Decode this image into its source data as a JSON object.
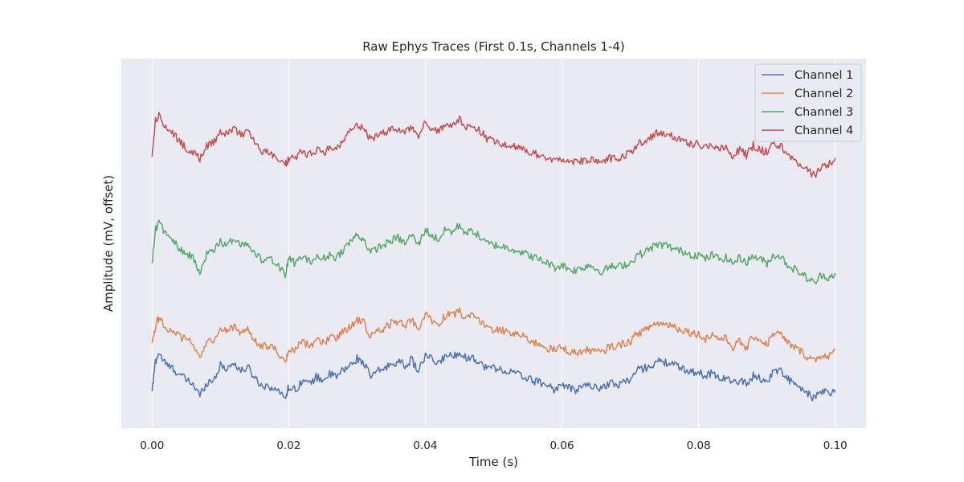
{
  "chart_data": {
    "type": "line",
    "title": "Raw Ephys Traces (First 0.1s, Channels 1-4)",
    "xlabel": "Time (s)",
    "ylabel": "Amplitude (mV, offset)",
    "xlim": [
      -0.0045,
      0.1045
    ],
    "xticks": [
      0.0,
      0.02,
      0.04,
      0.06,
      0.08,
      0.1
    ],
    "xtick_labels": [
      "0.00",
      "0.02",
      "0.04",
      "0.06",
      "0.08",
      "0.10"
    ],
    "ylim": [
      -2.8,
      10.2
    ],
    "yticks_shown": false,
    "grid": true,
    "legend_position": "top-right",
    "colors": {
      "background": "#eaeaf2",
      "grid": "#ffffff"
    },
    "series": [
      {
        "name": "Channel 1",
        "color": "#4c72b0",
        "offset": 0,
        "x": [
          0.0,
          0.0005,
          0.001,
          0.002,
          0.003,
          0.004,
          0.005,
          0.006,
          0.007,
          0.008,
          0.009,
          0.01,
          0.011,
          0.012,
          0.013,
          0.014,
          0.015,
          0.016,
          0.017,
          0.018,
          0.0195,
          0.02,
          0.021,
          0.022,
          0.023,
          0.024,
          0.025,
          0.026,
          0.027,
          0.028,
          0.029,
          0.03,
          0.031,
          0.032,
          0.033,
          0.034,
          0.035,
          0.036,
          0.037,
          0.038,
          0.039,
          0.04,
          0.041,
          0.042,
          0.043,
          0.044,
          0.045,
          0.046,
          0.047,
          0.048,
          0.049,
          0.05,
          0.051,
          0.052,
          0.053,
          0.054,
          0.055,
          0.056,
          0.057,
          0.058,
          0.059,
          0.06,
          0.061,
          0.062,
          0.063,
          0.064,
          0.065,
          0.066,
          0.067,
          0.068,
          0.069,
          0.07,
          0.071,
          0.072,
          0.073,
          0.074,
          0.075,
          0.076,
          0.077,
          0.078,
          0.079,
          0.08,
          0.081,
          0.082,
          0.083,
          0.084,
          0.085,
          0.086,
          0.087,
          0.088,
          0.089,
          0.09,
          0.091,
          0.092,
          0.093,
          0.094,
          0.095,
          0.096,
          0.097,
          0.098,
          0.099,
          0.1
        ],
        "y": [
          -1.5,
          -0.45,
          -0.15,
          -0.55,
          -0.7,
          -0.9,
          -1.1,
          -1.25,
          -1.65,
          -1.2,
          -1.1,
          -0.6,
          -0.7,
          -0.5,
          -0.8,
          -0.65,
          -1.0,
          -1.3,
          -1.3,
          -1.45,
          -1.7,
          -1.35,
          -1.45,
          -1.1,
          -1.25,
          -1.0,
          -1.1,
          -0.9,
          -1.0,
          -0.75,
          -0.6,
          -0.35,
          -0.5,
          -1.0,
          -0.8,
          -0.7,
          -0.55,
          -0.45,
          -0.6,
          -0.4,
          -0.8,
          -0.25,
          -0.4,
          -0.55,
          -0.2,
          -0.3,
          -0.1,
          -0.35,
          -0.3,
          -0.5,
          -0.7,
          -0.65,
          -0.75,
          -0.8,
          -0.85,
          -0.95,
          -1.05,
          -1.15,
          -1.2,
          -1.3,
          -1.45,
          -1.25,
          -1.4,
          -1.45,
          -1.35,
          -1.25,
          -1.4,
          -1.35,
          -1.2,
          -1.3,
          -1.15,
          -1.1,
          -0.75,
          -0.7,
          -0.6,
          -0.45,
          -0.5,
          -0.5,
          -0.65,
          -0.75,
          -0.8,
          -0.85,
          -0.95,
          -0.85,
          -1.05,
          -1.0,
          -1.25,
          -1.1,
          -1.25,
          -0.95,
          -1.05,
          -1.2,
          -0.75,
          -0.8,
          -1.05,
          -1.25,
          -1.45,
          -1.6,
          -1.75,
          -1.5,
          -1.6,
          -1.45
        ]
      },
      {
        "name": "Channel 2",
        "color": "#dd8452",
        "offset": 1.5,
        "x": [
          0.0,
          0.0005,
          0.001,
          0.002,
          0.003,
          0.004,
          0.005,
          0.006,
          0.007,
          0.008,
          0.009,
          0.01,
          0.011,
          0.012,
          0.013,
          0.014,
          0.015,
          0.016,
          0.017,
          0.018,
          0.0195,
          0.02,
          0.021,
          0.022,
          0.023,
          0.024,
          0.025,
          0.026,
          0.027,
          0.028,
          0.029,
          0.03,
          0.031,
          0.032,
          0.033,
          0.034,
          0.035,
          0.036,
          0.037,
          0.038,
          0.039,
          0.04,
          0.041,
          0.042,
          0.043,
          0.044,
          0.045,
          0.046,
          0.047,
          0.048,
          0.049,
          0.05,
          0.051,
          0.052,
          0.053,
          0.054,
          0.055,
          0.056,
          0.057,
          0.058,
          0.059,
          0.06,
          0.061,
          0.062,
          0.063,
          0.064,
          0.065,
          0.066,
          0.067,
          0.068,
          0.069,
          0.07,
          0.071,
          0.072,
          0.073,
          0.074,
          0.075,
          0.076,
          0.077,
          0.078,
          0.079,
          0.08,
          0.081,
          0.082,
          0.083,
          0.084,
          0.085,
          0.086,
          0.087,
          0.088,
          0.089,
          0.09,
          0.091,
          0.092,
          0.093,
          0.094,
          0.095,
          0.096,
          0.097,
          0.098,
          0.099,
          0.1
        ],
        "y": [
          -1.3,
          -0.7,
          -0.4,
          -0.75,
          -0.9,
          -1.05,
          -1.2,
          -1.3,
          -1.75,
          -1.3,
          -1.2,
          -0.8,
          -0.9,
          -0.7,
          -0.95,
          -0.85,
          -1.2,
          -1.45,
          -1.4,
          -1.55,
          -1.9,
          -1.55,
          -1.55,
          -1.25,
          -1.4,
          -1.25,
          -1.3,
          -1.1,
          -1.15,
          -0.9,
          -0.7,
          -0.5,
          -0.6,
          -1.1,
          -0.9,
          -0.8,
          -0.6,
          -0.55,
          -0.7,
          -0.45,
          -0.85,
          -0.3,
          -0.5,
          -0.7,
          -0.3,
          -0.35,
          -0.2,
          -0.45,
          -0.35,
          -0.55,
          -0.75,
          -0.8,
          -0.85,
          -0.9,
          -0.95,
          -1.05,
          -1.15,
          -1.3,
          -1.35,
          -1.5,
          -1.55,
          -1.45,
          -1.6,
          -1.65,
          -1.6,
          -1.55,
          -1.6,
          -1.65,
          -1.4,
          -1.45,
          -1.3,
          -1.25,
          -0.95,
          -0.9,
          -0.7,
          -0.6,
          -0.65,
          -0.65,
          -0.8,
          -0.85,
          -0.95,
          -1.0,
          -1.15,
          -1.0,
          -1.15,
          -1.15,
          -1.45,
          -1.25,
          -1.5,
          -1.05,
          -1.2,
          -1.35,
          -0.95,
          -1.0,
          -1.3,
          -1.45,
          -1.6,
          -1.8,
          -1.9,
          -1.7,
          -1.85,
          -1.55
        ]
      },
      {
        "name": "Channel 3",
        "color": "#55a868",
        "offset": 4.5,
        "x": [
          0.0,
          0.0005,
          0.001,
          0.002,
          0.003,
          0.004,
          0.005,
          0.006,
          0.007,
          0.008,
          0.009,
          0.01,
          0.011,
          0.012,
          0.013,
          0.014,
          0.015,
          0.016,
          0.017,
          0.018,
          0.0195,
          0.02,
          0.021,
          0.022,
          0.023,
          0.024,
          0.025,
          0.026,
          0.027,
          0.028,
          0.029,
          0.03,
          0.031,
          0.032,
          0.033,
          0.034,
          0.035,
          0.036,
          0.037,
          0.038,
          0.039,
          0.04,
          0.041,
          0.042,
          0.043,
          0.044,
          0.045,
          0.046,
          0.047,
          0.048,
          0.049,
          0.05,
          0.051,
          0.052,
          0.053,
          0.054,
          0.055,
          0.056,
          0.057,
          0.058,
          0.059,
          0.06,
          0.061,
          0.062,
          0.063,
          0.064,
          0.065,
          0.066,
          0.067,
          0.068,
          0.069,
          0.07,
          0.071,
          0.072,
          0.073,
          0.074,
          0.075,
          0.076,
          0.077,
          0.078,
          0.079,
          0.08,
          0.081,
          0.082,
          0.083,
          0.084,
          0.085,
          0.086,
          0.087,
          0.088,
          0.089,
          0.09,
          0.091,
          0.092,
          0.093,
          0.094,
          0.095,
          0.096,
          0.097,
          0.098,
          0.099,
          0.1
        ],
        "y": [
          -1.5,
          -0.3,
          -0.05,
          -0.5,
          -0.75,
          -0.95,
          -1.15,
          -1.3,
          -1.8,
          -1.2,
          -1.1,
          -0.75,
          -0.85,
          -0.6,
          -0.85,
          -0.75,
          -1.1,
          -1.4,
          -1.25,
          -1.45,
          -1.9,
          -1.35,
          -1.5,
          -1.25,
          -1.45,
          -1.3,
          -1.35,
          -1.2,
          -1.3,
          -1.0,
          -0.75,
          -0.5,
          -0.65,
          -1.15,
          -0.95,
          -0.85,
          -0.7,
          -0.6,
          -0.8,
          -0.5,
          -0.85,
          -0.3,
          -0.55,
          -0.65,
          -0.3,
          -0.4,
          -0.15,
          -0.45,
          -0.35,
          -0.6,
          -0.8,
          -0.85,
          -0.9,
          -0.95,
          -1.0,
          -1.1,
          -1.2,
          -1.3,
          -1.4,
          -1.5,
          -1.65,
          -1.55,
          -1.7,
          -1.75,
          -1.65,
          -1.55,
          -1.7,
          -1.8,
          -1.6,
          -1.65,
          -1.55,
          -1.5,
          -1.2,
          -1.15,
          -0.95,
          -0.85,
          -0.85,
          -0.95,
          -1.05,
          -1.1,
          -1.2,
          -1.2,
          -1.35,
          -1.2,
          -1.35,
          -1.3,
          -1.5,
          -1.3,
          -1.45,
          -1.25,
          -1.35,
          -1.5,
          -1.2,
          -1.25,
          -1.55,
          -1.7,
          -1.85,
          -2.05,
          -2.2,
          -1.9,
          -2.0,
          -1.85
        ]
      },
      {
        "name": "Channel 4",
        "color": "#c44e52",
        "offset": 7.5,
        "x": [
          0.0,
          0.0005,
          0.001,
          0.002,
          0.003,
          0.004,
          0.005,
          0.006,
          0.007,
          0.008,
          0.009,
          0.01,
          0.011,
          0.012,
          0.013,
          0.014,
          0.015,
          0.016,
          0.017,
          0.018,
          0.0195,
          0.02,
          0.021,
          0.022,
          0.023,
          0.024,
          0.025,
          0.026,
          0.027,
          0.028,
          0.029,
          0.03,
          0.031,
          0.032,
          0.033,
          0.034,
          0.035,
          0.036,
          0.037,
          0.038,
          0.039,
          0.04,
          0.041,
          0.042,
          0.043,
          0.044,
          0.045,
          0.046,
          0.047,
          0.048,
          0.049,
          0.05,
          0.051,
          0.052,
          0.053,
          0.054,
          0.055,
          0.056,
          0.057,
          0.058,
          0.059,
          0.06,
          0.061,
          0.062,
          0.063,
          0.064,
          0.065,
          0.066,
          0.067,
          0.068,
          0.069,
          0.07,
          0.071,
          0.072,
          0.073,
          0.074,
          0.075,
          0.076,
          0.077,
          0.078,
          0.079,
          0.08,
          0.081,
          0.082,
          0.083,
          0.084,
          0.085,
          0.086,
          0.087,
          0.088,
          0.089,
          0.09,
          0.091,
          0.092,
          0.093,
          0.094,
          0.095,
          0.096,
          0.097,
          0.098,
          0.099,
          0.1
        ],
        "y": [
          -0.75,
          0.5,
          0.75,
          0.3,
          0.1,
          -0.2,
          -0.45,
          -0.55,
          -0.85,
          -0.35,
          -0.25,
          0.15,
          0.05,
          0.3,
          0.0,
          0.15,
          -0.25,
          -0.6,
          -0.55,
          -0.8,
          -1.0,
          -0.85,
          -0.75,
          -0.55,
          -0.7,
          -0.5,
          -0.65,
          -0.4,
          -0.5,
          -0.2,
          0.15,
          0.3,
          0.25,
          -0.15,
          0.0,
          0.1,
          0.2,
          0.25,
          0.1,
          0.3,
          0.0,
          0.45,
          0.2,
          0.1,
          0.45,
          0.35,
          0.55,
          0.3,
          0.4,
          0.15,
          -0.1,
          -0.2,
          -0.3,
          -0.35,
          -0.4,
          -0.5,
          -0.55,
          -0.65,
          -0.75,
          -0.85,
          -0.9,
          -0.85,
          -0.95,
          -0.95,
          -0.9,
          -0.85,
          -0.95,
          -1.0,
          -0.8,
          -0.85,
          -0.7,
          -0.65,
          -0.3,
          -0.25,
          -0.05,
          0.1,
          0.1,
          0.0,
          -0.1,
          -0.2,
          -0.3,
          -0.3,
          -0.45,
          -0.3,
          -0.45,
          -0.45,
          -0.7,
          -0.5,
          -0.7,
          -0.35,
          -0.5,
          -0.6,
          -0.3,
          -0.35,
          -0.7,
          -0.85,
          -1.1,
          -1.25,
          -1.4,
          -1.1,
          -1.05,
          -0.8
        ]
      }
    ]
  }
}
